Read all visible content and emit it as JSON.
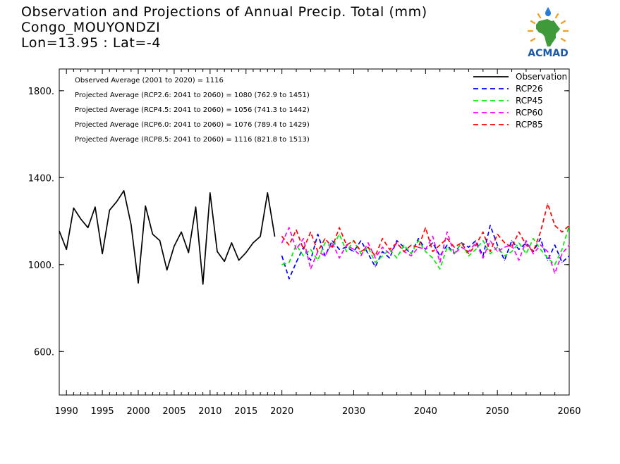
{
  "header": {
    "title": "Observation and Projections of Annual Precip. Total (mm)",
    "location": "Congo_MOUYONDZI",
    "coords": "Lon=13.95 : Lat=-4"
  },
  "logo": {
    "text": "ACMAD",
    "colors": {
      "africa": "#3f9a3a",
      "rays": "#f0a020",
      "text": "#1a5aa8",
      "drop": "#2a7ad8"
    }
  },
  "chart_data": {
    "type": "line",
    "xlim": [
      1989,
      2060
    ],
    "ylim": [
      400,
      1900
    ],
    "x_ticks": [
      {
        "v": 1990,
        "label": "1990"
      },
      {
        "v": 1995,
        "label": "1995"
      },
      {
        "v": 2000,
        "label": "2000"
      },
      {
        "v": 2005,
        "label": "2005"
      },
      {
        "v": 2010,
        "label": "2010"
      },
      {
        "v": 2015,
        "label": "2015"
      },
      {
        "v": 2020,
        "label": "2020"
      },
      {
        "v": 2030,
        "label": "2030"
      },
      {
        "v": 2040,
        "label": "2040"
      },
      {
        "v": 2050,
        "label": "2050"
      },
      {
        "v": 2060,
        "label": "2060"
      }
    ],
    "y_ticks": [
      {
        "v": 600,
        "label": "600."
      },
      {
        "v": 1000,
        "label": "1000."
      },
      {
        "v": 1400,
        "label": "1400."
      },
      {
        "v": 1800,
        "label": "1800."
      }
    ],
    "annotations": [
      "Observed Average (2001 to 2020) = 1116",
      "Projected Average (RCP2.6: 2041 to 2060) = 1080 (762.9 to 1451)",
      "Projected Average (RCP4.5: 2041 to 2060) = 1056 (741.3 to 1442)",
      "Projected Average (RCP6.0: 2041 to 2060) = 1076 (789.4 to 1429)",
      "Projected Average (RCP8.5: 2041 to 2060) = 1116 (821.8 to 1513)"
    ],
    "legend_position": "top-right",
    "series": [
      {
        "name": "Observation",
        "color": "#000000",
        "dashed": false,
        "x": [
          1989,
          1990,
          1991,
          1992,
          1993,
          1994,
          1995,
          1996,
          1997,
          1998,
          1999,
          2000,
          2001,
          2002,
          2003,
          2004,
          2005,
          2006,
          2007,
          2008,
          2009,
          2010,
          2011,
          2012,
          2013,
          2014,
          2015,
          2016,
          2017,
          2018,
          2019
        ],
        "values": [
          1155,
          1070,
          1260,
          1210,
          1170,
          1265,
          1050,
          1250,
          1290,
          1340,
          1185,
          915,
          1270,
          1140,
          1110,
          975,
          1085,
          1150,
          1055,
          1265,
          910,
          1330,
          1060,
          1015,
          1100,
          1020,
          1055,
          1100,
          1130,
          1330,
          1130
        ]
      },
      {
        "name": "RCP26",
        "color": "#0000ff",
        "dashed": true,
        "x": [
          2020,
          2021,
          2022,
          2023,
          2024,
          2025,
          2026,
          2027,
          2028,
          2029,
          2030,
          2031,
          2032,
          2033,
          2034,
          2035,
          2036,
          2037,
          2038,
          2039,
          2040,
          2041,
          2042,
          2043,
          2044,
          2045,
          2046,
          2047,
          2048,
          2049,
          2050,
          2051,
          2052,
          2053,
          2054,
          2055,
          2056,
          2057,
          2058,
          2059,
          2060
        ],
        "values": [
          1040,
          935,
          1010,
          1080,
          1020,
          1140,
          1040,
          1110,
          1070,
          1080,
          1060,
          1110,
          1050,
          990,
          1060,
          1030,
          1110,
          1080,
          1050,
          1120,
          1070,
          1100,
          1040,
          1090,
          1050,
          1100,
          1080,
          1110,
          1040,
          1180,
          1090,
          1020,
          1110,
          1070,
          1100,
          1060,
          1120,
          1020,
          1090,
          1010,
          1040
        ]
      },
      {
        "name": "RCP45",
        "color": "#00ee00",
        "dashed": true,
        "x": [
          2020,
          2021,
          2022,
          2023,
          2024,
          2025,
          2026,
          2027,
          2028,
          2029,
          2030,
          2031,
          2032,
          2033,
          2034,
          2035,
          2036,
          2037,
          2038,
          2039,
          2040,
          2041,
          2042,
          2043,
          2044,
          2045,
          2046,
          2047,
          2048,
          2049,
          2050,
          2051,
          2052,
          2053,
          2054,
          2055,
          2056,
          2057,
          2058,
          2059,
          2060
        ],
        "values": [
          1000,
          1010,
          1090,
          1040,
          1070,
          1020,
          1100,
          1080,
          1140,
          1060,
          1110,
          1050,
          1080,
          1010,
          1040,
          1070,
          1030,
          1090,
          1050,
          1110,
          1060,
          1030,
          980,
          1080,
          1050,
          1100,
          1040,
          1070,
          1110,
          1050,
          1080,
          1040,
          1060,
          1100,
          1050,
          1120,
          1070,
          1030,
          1000,
          1070,
          1180
        ]
      },
      {
        "name": "RCP60",
        "color": "#ff00ff",
        "dashed": true,
        "x": [
          2020,
          2021,
          2022,
          2023,
          2024,
          2025,
          2026,
          2027,
          2028,
          2029,
          2030,
          2031,
          2032,
          2033,
          2034,
          2035,
          2036,
          2037,
          2038,
          2039,
          2040,
          2041,
          2042,
          2043,
          2044,
          2045,
          2046,
          2047,
          2048,
          2049,
          2050,
          2051,
          2052,
          2053,
          2054,
          2055,
          2056,
          2057,
          2058,
          2059,
          2060
        ],
        "values": [
          1100,
          1170,
          1070,
          1120,
          980,
          1060,
          1040,
          1100,
          1030,
          1090,
          1070,
          1040,
          1100,
          1030,
          1080,
          1050,
          1100,
          1060,
          1040,
          1080,
          1070,
          1130,
          1010,
          1150,
          1050,
          1080,
          1060,
          1100,
          1030,
          1110,
          1060,
          1080,
          1090,
          1020,
          1110,
          1050,
          1090,
          1060,
          960,
          1050,
          1090
        ]
      },
      {
        "name": "RCP85",
        "color": "#ff0000",
        "dashed": true,
        "x": [
          2020,
          2021,
          2022,
          2023,
          2024,
          2025,
          2026,
          2027,
          2028,
          2029,
          2030,
          2031,
          2032,
          2033,
          2034,
          2035,
          2036,
          2037,
          2038,
          2039,
          2040,
          2041,
          2042,
          2043,
          2044,
          2045,
          2046,
          2047,
          2048,
          2049,
          2050,
          2051,
          2052,
          2053,
          2054,
          2055,
          2056,
          2057,
          2058,
          2059,
          2060
        ],
        "values": [
          1130,
          1090,
          1160,
          1070,
          1150,
          1060,
          1120,
          1080,
          1170,
          1090,
          1110,
          1060,
          1080,
          1040,
          1120,
          1070,
          1100,
          1060,
          1090,
          1080,
          1170,
          1060,
          1090,
          1120,
          1080,
          1100,
          1050,
          1090,
          1150,
          1060,
          1140,
          1100,
          1080,
          1150,
          1090,
          1060,
          1150,
          1280,
          1180,
          1150,
          1180
        ]
      }
    ]
  }
}
